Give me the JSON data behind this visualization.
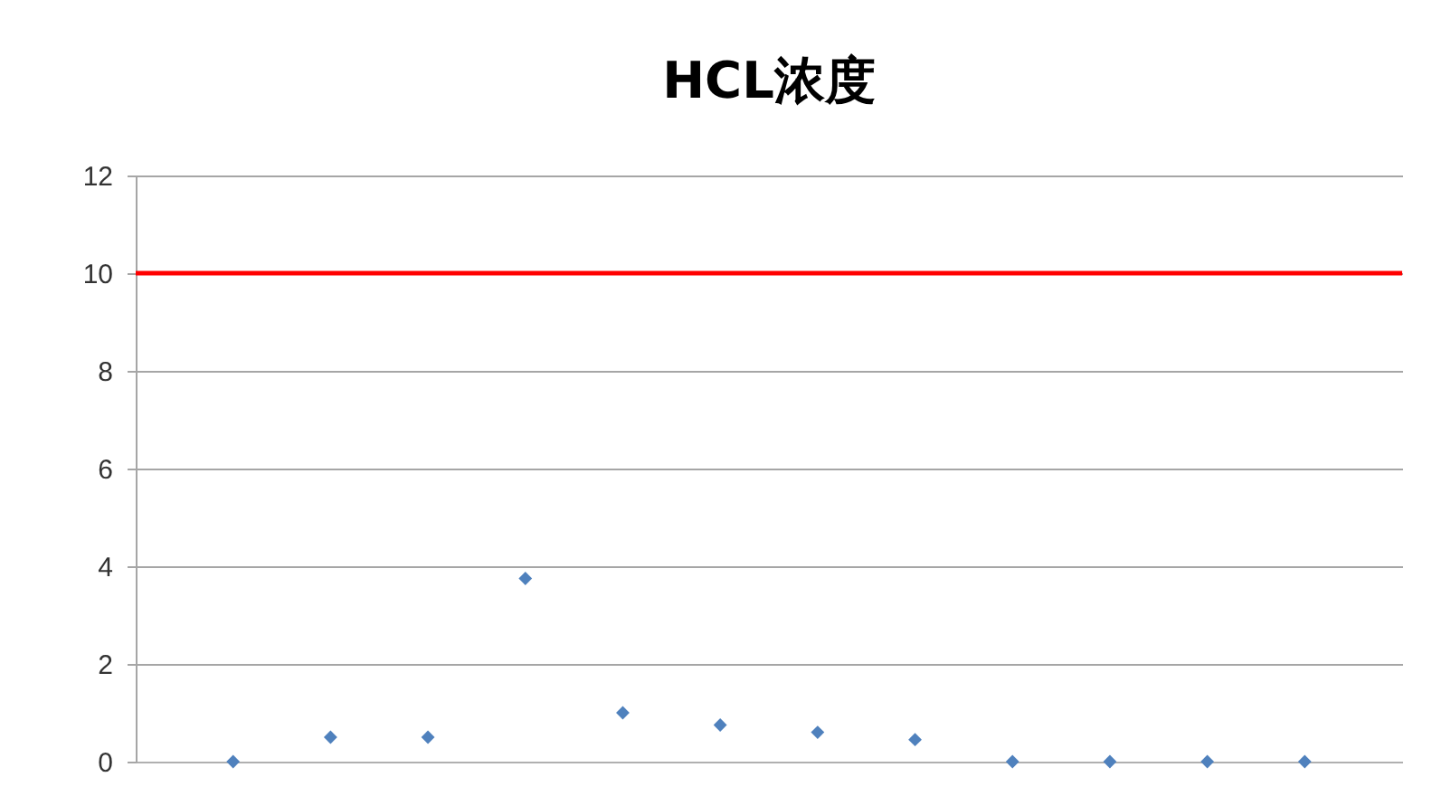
{
  "chart_data": {
    "type": "scatter",
    "title": "HCL浓度",
    "categories": [
      null,
      null,
      null,
      null,
      null,
      null,
      null,
      null,
      null,
      null,
      null,
      null
    ],
    "series": [
      {
        "color": "#4f81bd",
        "values": [
          0,
          0.5,
          0.5,
          3.75,
          1,
          0.75,
          0.6,
          0.45,
          0,
          0,
          0,
          0
        ]
      }
    ],
    "ylim": [
      0,
      12
    ],
    "yticks": [
      0,
      2,
      4,
      6,
      8,
      10,
      12
    ],
    "grid": "y",
    "marker": "diamond",
    "ref_lines": [
      {
        "axis": "y",
        "value": 10,
        "color": "#ff0000"
      }
    ]
  }
}
